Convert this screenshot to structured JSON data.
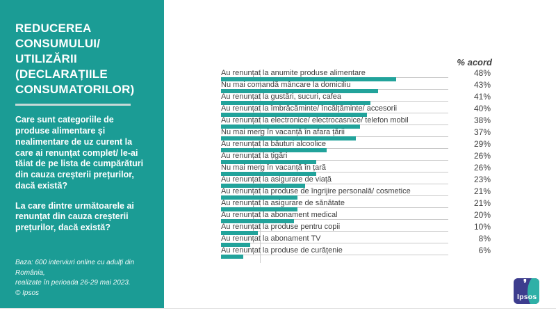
{
  "sidebar": {
    "title": "REDUCEREA CONSUMULUI/ UTILIZĂRII (DECLARAȚIILE CONSUMATORILOR)",
    "question_1": "Care sunt categoriile de produse alimentare și nealimentare de uz curent la care ai renunțat complet/ le-ai tăiat de pe lista de cumpărături din cauza creșterii prețurilor, dacă există?",
    "question_2": "La care dintre următoarele ai renunțat din cauza creșterii prețurilor, dacă există?",
    "footnote_line1": "Baza: 600 interviuri online cu adulți din România,",
    "footnote_line2": "realizate în perioada 26-29 mai 2023.",
    "footnote_line3": "© Ipsos",
    "background_color": "#1B9C95"
  },
  "chart": {
    "header": "% acord"
  },
  "chart_data": {
    "type": "bar",
    "orientation": "horizontal",
    "title": "REDUCEREA CONSUMULUI/ UTILIZĂRII (DECLARAȚIILE CONSUMATORILOR)",
    "column_header": "% acord",
    "value_suffix": "%",
    "categories": [
      "Au renunțat la anumite produse alimentare",
      "Nu mai comandă mâncare la domiciliu",
      "Au renunțat la gustări, sucuri, cafea",
      "Au renunțat la îmbrăcăminte/ încălțăminte/ accesorii",
      "Au renunțat la electronice/ electrocasnice/ telefon mobil",
      "Nu mai merg în vacanță în afara țării",
      "Au renunțat la băuturi alcoolice",
      "Au renunțat la țigări",
      "Nu mai merg în vacanță în țară",
      "Au renunțat la asigurare de viață",
      "Au renunțat la produse de îngrijire personală/ cosmetice",
      "Au renunțat la asigurare de sănătate",
      "Au renunțat la abonament medical",
      "Au renunțat la produse pentru copii",
      "Au renunțat la abonament TV",
      "Au renunțat la produse de curățenie"
    ],
    "values": [
      48,
      43,
      41,
      40,
      38,
      37,
      29,
      26,
      26,
      23,
      21,
      21,
      20,
      10,
      8,
      6
    ],
    "bar_color": "#22A39B",
    "grid": "single vertical gridline near left",
    "legend": "none",
    "xlim": [
      0,
      62
    ]
  },
  "logo": {
    "text": "Ipsos",
    "navy_color": "#3D3D8E",
    "teal_color": "#2FB0A7"
  }
}
